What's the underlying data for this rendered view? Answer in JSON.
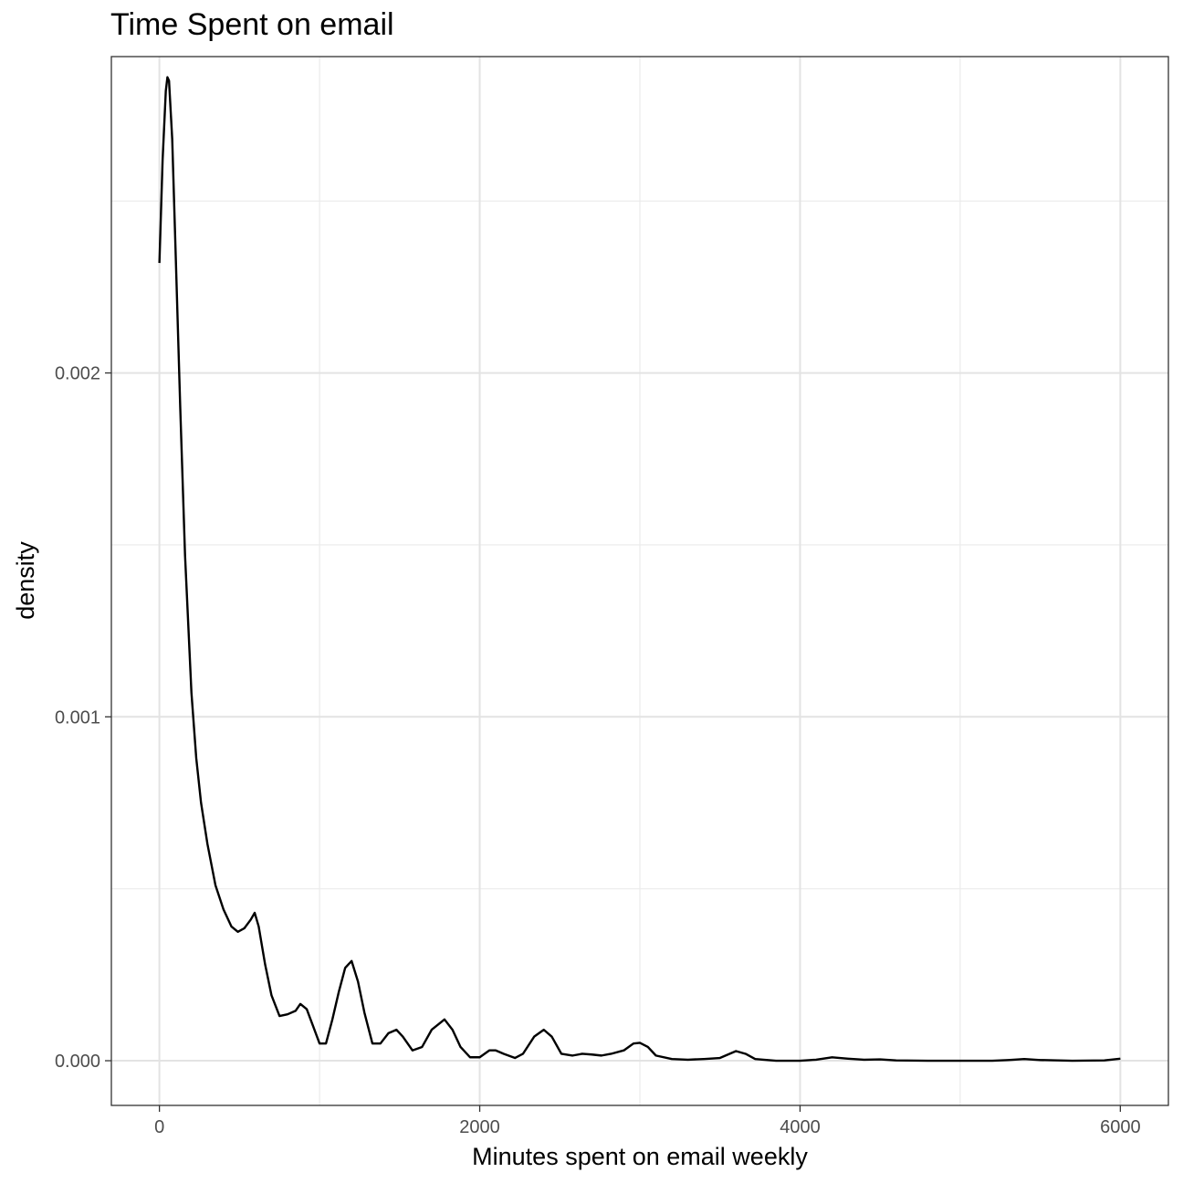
{
  "chart_data": {
    "type": "line",
    "title": "Time Spent on email",
    "xlabel": "Minutes spent on email weekly",
    "ylabel": "density",
    "xlim": [
      -300,
      6300
    ],
    "ylim": [
      -0.00013,
      0.00292
    ],
    "x_ticks": [
      0,
      2000,
      4000,
      6000
    ],
    "x_tick_labels": [
      "0",
      "2000",
      "4000",
      "6000"
    ],
    "y_ticks": [
      0.0,
      0.001,
      0.002
    ],
    "y_tick_labels": [
      "0.000",
      "0.001",
      "0.002"
    ],
    "grid": true,
    "series": [
      {
        "color": "#000000",
        "points": [
          [
            0,
            0.00232
          ],
          [
            20,
            0.00262
          ],
          [
            40,
            0.00282
          ],
          [
            50,
            0.00286
          ],
          [
            60,
            0.00285
          ],
          [
            80,
            0.00268
          ],
          [
            100,
            0.00237
          ],
          [
            130,
            0.0019
          ],
          [
            160,
            0.00147
          ],
          [
            200,
            0.00107
          ],
          [
            230,
            0.00088
          ],
          [
            260,
            0.00075
          ],
          [
            300,
            0.00063
          ],
          [
            350,
            0.00051
          ],
          [
            400,
            0.00044
          ],
          [
            450,
            0.00039
          ],
          [
            490,
            0.000375
          ],
          [
            530,
            0.000385
          ],
          [
            570,
            0.00041
          ],
          [
            595,
            0.00043
          ],
          [
            620,
            0.00039
          ],
          [
            660,
            0.00028
          ],
          [
            700,
            0.00019
          ],
          [
            750,
            0.00013
          ],
          [
            800,
            0.000135
          ],
          [
            850,
            0.000145
          ],
          [
            880,
            0.000165
          ],
          [
            920,
            0.00015
          ],
          [
            960,
            0.0001
          ],
          [
            1000,
            5e-05
          ],
          [
            1040,
            5e-05
          ],
          [
            1080,
            0.00012
          ],
          [
            1120,
            0.0002
          ],
          [
            1160,
            0.00027
          ],
          [
            1200,
            0.00029
          ],
          [
            1240,
            0.00023
          ],
          [
            1280,
            0.00014
          ],
          [
            1330,
            5e-05
          ],
          [
            1380,
            5e-05
          ],
          [
            1430,
            8e-05
          ],
          [
            1480,
            9e-05
          ],
          [
            1520,
            7e-05
          ],
          [
            1580,
            3e-05
          ],
          [
            1640,
            4e-05
          ],
          [
            1700,
            9e-05
          ],
          [
            1780,
            0.00012
          ],
          [
            1830,
            9e-05
          ],
          [
            1880,
            4e-05
          ],
          [
            1940,
            1e-05
          ],
          [
            2000,
            1e-05
          ],
          [
            2060,
            3e-05
          ],
          [
            2100,
            3e-05
          ],
          [
            2150,
            2e-05
          ],
          [
            2220,
            8e-06
          ],
          [
            2270,
            2e-05
          ],
          [
            2340,
            7e-05
          ],
          [
            2400,
            9e-05
          ],
          [
            2450,
            7e-05
          ],
          [
            2510,
            2e-05
          ],
          [
            2580,
            1.5e-05
          ],
          [
            2640,
            2e-05
          ],
          [
            2700,
            1.8e-05
          ],
          [
            2760,
            1.5e-05
          ],
          [
            2820,
            2e-05
          ],
          [
            2900,
            3e-05
          ],
          [
            2960,
            5e-05
          ],
          [
            3000,
            5.2e-05
          ],
          [
            3050,
            4e-05
          ],
          [
            3100,
            1.5e-05
          ],
          [
            3200,
            5e-06
          ],
          [
            3300,
            3e-06
          ],
          [
            3400,
            5e-06
          ],
          [
            3500,
            8e-06
          ],
          [
            3560,
            2e-05
          ],
          [
            3600,
            2.8e-05
          ],
          [
            3660,
            2e-05
          ],
          [
            3720,
            5e-06
          ],
          [
            3850,
            0.0
          ],
          [
            4000,
            0.0
          ],
          [
            4100,
            3e-06
          ],
          [
            4200,
            1e-05
          ],
          [
            4300,
            6e-06
          ],
          [
            4400,
            3e-06
          ],
          [
            4500,
            4e-06
          ],
          [
            4600,
            1e-06
          ],
          [
            4800,
            0.0
          ],
          [
            5000,
            0.0
          ],
          [
            5200,
            0.0
          ],
          [
            5300,
            2e-06
          ],
          [
            5400,
            5e-06
          ],
          [
            5500,
            2e-06
          ],
          [
            5700,
            0.0
          ],
          [
            5900,
            1e-06
          ],
          [
            6000,
            6e-06
          ]
        ]
      }
    ]
  }
}
